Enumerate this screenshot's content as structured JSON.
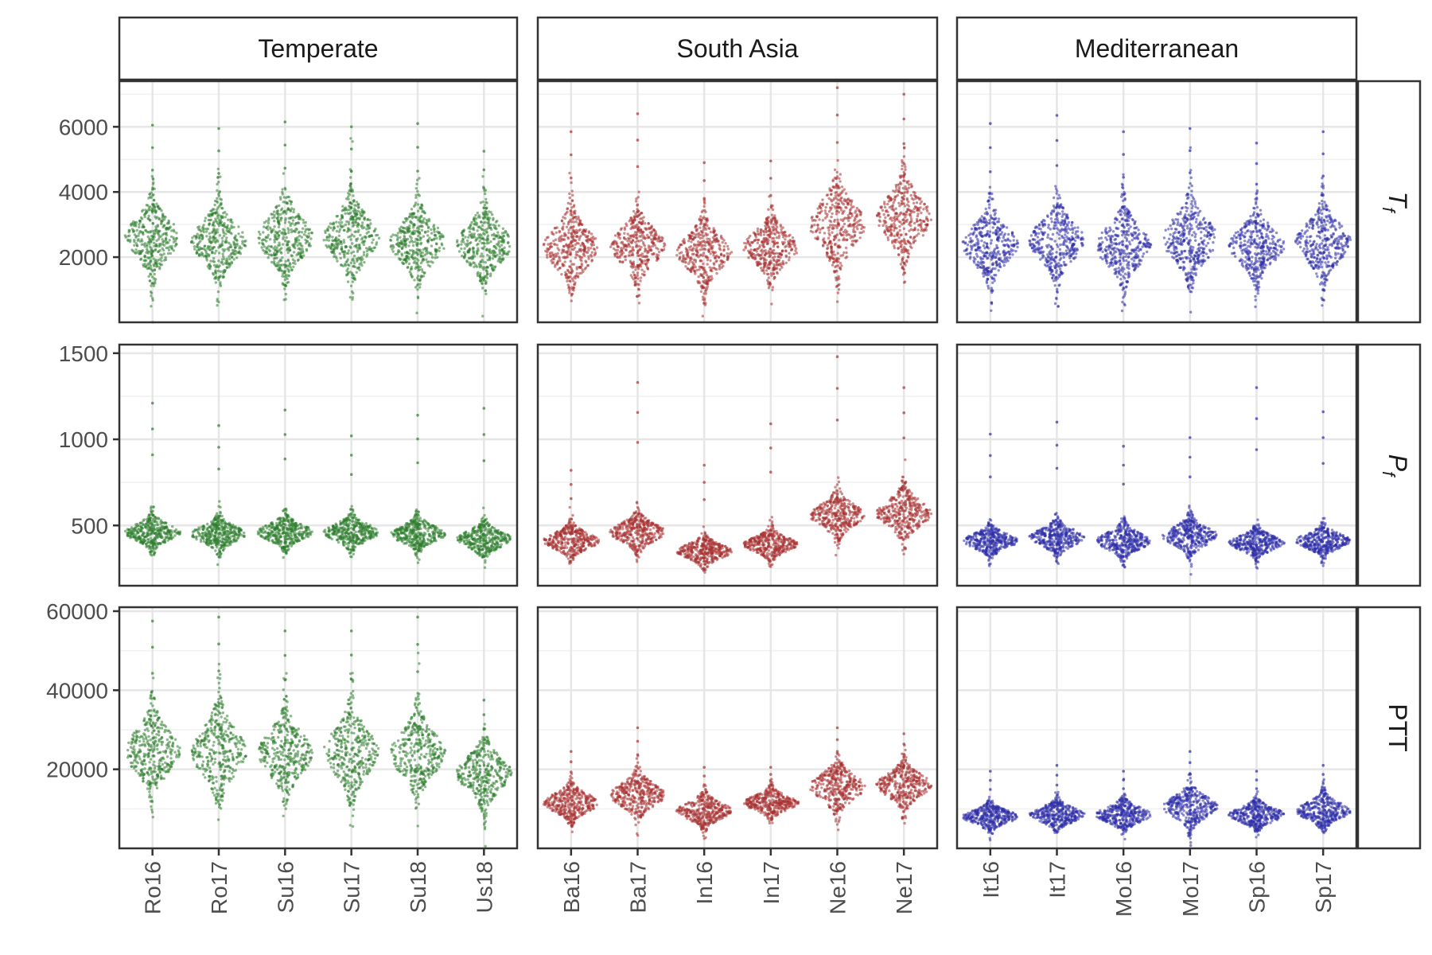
{
  "chart_data": {
    "type": "scatter",
    "style": "beeswarm-violin facet grid",
    "columns": [
      {
        "label": "Temperate",
        "color": "#2e7d2e",
        "categories": [
          "Ro16",
          "Ro17",
          "Su16",
          "Su17",
          "Su18",
          "Us18"
        ]
      },
      {
        "label": "South Asia",
        "color": "#a83232",
        "categories": [
          "Ba16",
          "Ba17",
          "In16",
          "In17",
          "Ne16",
          "Ne17"
        ]
      },
      {
        "label": "Mediterranean",
        "color": "#2e2ea8",
        "categories": [
          "It16",
          "It17",
          "Mo16",
          "Mo17",
          "Sp16",
          "Sp17"
        ]
      }
    ],
    "rows": [
      {
        "label": "T",
        "subscript": "f",
        "italic": true,
        "ylim": [
          0,
          7400
        ],
        "yticks": [
          2000,
          4000,
          6000
        ],
        "ytick_labels": [
          "2000",
          "4000",
          "6000"
        ],
        "median": [
          [
            2600,
            2500,
            2600,
            2600,
            2450,
            2400
          ],
          [
            2300,
            2350,
            2150,
            2300,
            3000,
            3200
          ],
          [
            2400,
            2500,
            2350,
            2550,
            2350,
            2450
          ]
        ],
        "spread": [
          [
            550,
            550,
            600,
            600,
            550,
            550
          ],
          [
            550,
            500,
            500,
            450,
            650,
            600
          ],
          [
            550,
            550,
            550,
            600,
            500,
            550
          ]
        ],
        "max": [
          [
            6050,
            5950,
            6150,
            6000,
            6100,
            5250
          ],
          [
            5850,
            6400,
            4900,
            4950,
            7200,
            7000
          ],
          [
            6100,
            6350,
            5850,
            5950,
            5500,
            5850
          ]
        ]
      },
      {
        "label": "P",
        "subscript": "f",
        "italic": true,
        "ylim": [
          150,
          1550
        ],
        "yticks": [
          500,
          1000,
          1500
        ],
        "ytick_labels": [
          "500",
          "1000",
          "1500"
        ],
        "median": [
          [
            460,
            450,
            460,
            460,
            450,
            420
          ],
          [
            410,
            460,
            350,
            390,
            560,
            570
          ],
          [
            410,
            430,
            410,
            440,
            400,
            410
          ]
        ],
        "spread": [
          [
            45,
            45,
            45,
            45,
            45,
            45
          ],
          [
            45,
            50,
            40,
            40,
            60,
            70
          ],
          [
            40,
            45,
            45,
            50,
            40,
            40
          ]
        ],
        "max": [
          [
            1210,
            1080,
            1170,
            1020,
            1140,
            1180
          ],
          [
            820,
            1330,
            850,
            1090,
            1480,
            1300
          ],
          [
            1030,
            1100,
            960,
            1010,
            1300,
            1160
          ]
        ]
      },
      {
        "label": "PTT",
        "subscript": "",
        "italic": false,
        "ylim": [
          0,
          61000
        ],
        "yticks": [
          20000,
          40000,
          60000
        ],
        "ytick_labels": [
          "20000",
          "40000",
          "60000"
        ],
        "median": [
          [
            24500,
            24500,
            24000,
            24500,
            24000,
            19000
          ],
          [
            11500,
            13500,
            9500,
            11500,
            15500,
            16000
          ],
          [
            8000,
            8500,
            8500,
            10500,
            8500,
            9500
          ]
        ],
        "spread": [
          [
            5000,
            5500,
            5000,
            5500,
            5000,
            4000
          ],
          [
            2200,
            2700,
            2000,
            1700,
            3000,
            2700
          ],
          [
            1600,
            1700,
            1800,
            2500,
            1700,
            2000
          ]
        ],
        "max": [
          [
            57500,
            58500,
            55000,
            55000,
            58500,
            37500
          ],
          [
            24500,
            30500,
            20500,
            20500,
            30500,
            29000
          ],
          [
            19500,
            21000,
            19500,
            24500,
            19500,
            21000
          ]
        ]
      }
    ],
    "grid": true,
    "legend": "none"
  }
}
